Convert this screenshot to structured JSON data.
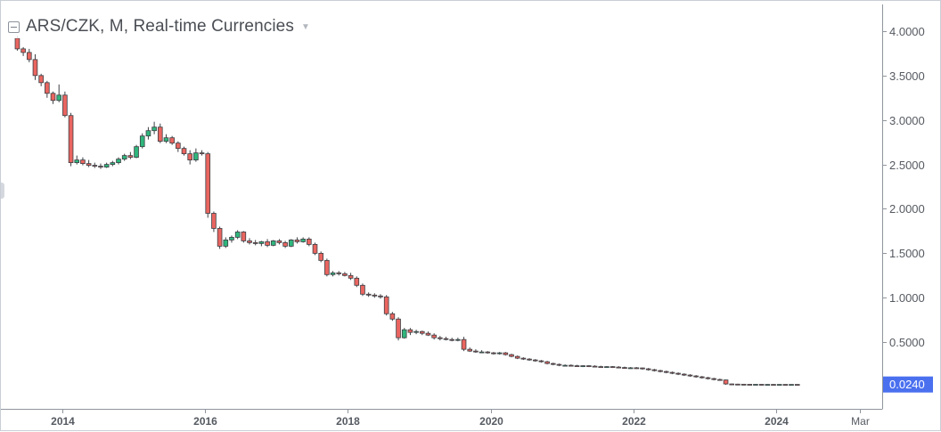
{
  "header": {
    "title": "ARS/CZK, M, Real-time Currencies",
    "icons": {
      "collapse": "collapse-box-icon",
      "dropdown": "chevron-down-icon"
    }
  },
  "colors": {
    "up": "#26a69a",
    "down": "#ef5350",
    "up_fill": "#2fb67c",
    "down_fill": "#ea6560",
    "wick": "#3c3f44",
    "axis_line": "#8f959c",
    "grid": "#e9ecef",
    "tick_text": "#555a61",
    "price_label_bg": "#4a70ef",
    "price_label_text": "#ffffff"
  },
  "chart_data": {
    "type": "candlestick",
    "title": "ARS/CZK, M, Real-time Currencies",
    "interval": "monthly",
    "y_axis_side": "right",
    "ylim": [
      -0.25,
      4.3
    ],
    "y_ticks": [
      "4.0000",
      "3.5000",
      "3.0000",
      "2.5000",
      "2.0000",
      "1.5000",
      "1.0000",
      "0.5000"
    ],
    "x_ticks": [
      {
        "label": "2014",
        "t": 2014.0
      },
      {
        "label": "2016",
        "t": 2016.0
      },
      {
        "label": "2018",
        "t": 2018.0
      },
      {
        "label": "2020",
        "t": 2020.0
      },
      {
        "label": "2022",
        "t": 2022.0
      },
      {
        "label": "2024",
        "t": 2024.0
      },
      {
        "label": "Mar",
        "t": 2025.17
      }
    ],
    "xlim": [
      2013.22,
      2025.48
    ],
    "first_month": "2013-05",
    "last_price_label": "0.0240",
    "last_price_value": 0.024,
    "grid": false,
    "ohlc": [
      [
        3.92,
        3.95,
        3.78,
        3.8
      ],
      [
        3.8,
        3.82,
        3.72,
        3.76
      ],
      [
        3.76,
        3.8,
        3.65,
        3.68
      ],
      [
        3.68,
        3.74,
        3.45,
        3.5
      ],
      [
        3.5,
        3.52,
        3.38,
        3.42
      ],
      [
        3.42,
        3.44,
        3.25,
        3.3
      ],
      [
        3.3,
        3.32,
        3.18,
        3.22
      ],
      [
        3.22,
        3.4,
        3.2,
        3.28
      ],
      [
        3.28,
        3.32,
        3.03,
        3.05
      ],
      [
        3.05,
        3.08,
        2.48,
        2.52
      ],
      [
        2.52,
        2.6,
        2.5,
        2.55
      ],
      [
        2.55,
        2.58,
        2.49,
        2.51
      ],
      [
        2.51,
        2.55,
        2.47,
        2.49
      ],
      [
        2.49,
        2.52,
        2.46,
        2.48
      ],
      [
        2.48,
        2.51,
        2.45,
        2.47
      ],
      [
        2.47,
        2.52,
        2.46,
        2.5
      ],
      [
        2.5,
        2.54,
        2.48,
        2.52
      ],
      [
        2.52,
        2.58,
        2.5,
        2.56
      ],
      [
        2.56,
        2.62,
        2.54,
        2.6
      ],
      [
        2.6,
        2.64,
        2.56,
        2.58
      ],
      [
        2.58,
        2.72,
        2.57,
        2.7
      ],
      [
        2.7,
        2.85,
        2.68,
        2.82
      ],
      [
        2.82,
        2.92,
        2.78,
        2.88
      ],
      [
        2.88,
        2.98,
        2.84,
        2.92
      ],
      [
        2.92,
        2.96,
        2.74,
        2.76
      ],
      [
        2.76,
        2.84,
        2.74,
        2.8
      ],
      [
        2.8,
        2.82,
        2.72,
        2.74
      ],
      [
        2.74,
        2.76,
        2.64,
        2.68
      ],
      [
        2.68,
        2.7,
        2.6,
        2.62
      ],
      [
        2.62,
        2.66,
        2.5,
        2.55
      ],
      [
        2.55,
        2.68,
        2.53,
        2.63
      ],
      [
        2.63,
        2.66,
        2.6,
        2.62
      ],
      [
        2.62,
        2.64,
        1.9,
        1.95
      ],
      [
        1.95,
        1.97,
        1.74,
        1.78
      ],
      [
        1.78,
        1.8,
        1.55,
        1.58
      ],
      [
        1.58,
        1.68,
        1.56,
        1.65
      ],
      [
        1.65,
        1.7,
        1.62,
        1.68
      ],
      [
        1.68,
        1.76,
        1.66,
        1.74
      ],
      [
        1.74,
        1.75,
        1.62,
        1.64
      ],
      [
        1.64,
        1.67,
        1.6,
        1.62
      ],
      [
        1.62,
        1.65,
        1.59,
        1.61
      ],
      [
        1.61,
        1.64,
        1.58,
        1.63
      ],
      [
        1.63,
        1.66,
        1.57,
        1.59
      ],
      [
        1.59,
        1.65,
        1.58,
        1.64
      ],
      [
        1.64,
        1.66,
        1.6,
        1.62
      ],
      [
        1.62,
        1.64,
        1.56,
        1.58
      ],
      [
        1.58,
        1.66,
        1.57,
        1.65
      ],
      [
        1.65,
        1.68,
        1.61,
        1.63
      ],
      [
        1.63,
        1.68,
        1.62,
        1.66
      ],
      [
        1.66,
        1.68,
        1.58,
        1.6
      ],
      [
        1.6,
        1.62,
        1.48,
        1.5
      ],
      [
        1.5,
        1.52,
        1.4,
        1.42
      ],
      [
        1.42,
        1.44,
        1.24,
        1.26
      ],
      [
        1.26,
        1.3,
        1.24,
        1.28
      ],
      [
        1.28,
        1.3,
        1.25,
        1.27
      ],
      [
        1.27,
        1.29,
        1.24,
        1.25
      ],
      [
        1.25,
        1.28,
        1.2,
        1.22
      ],
      [
        1.22,
        1.24,
        1.12,
        1.14
      ],
      [
        1.14,
        1.16,
        1.02,
        1.04
      ],
      [
        1.04,
        1.06,
        1.01,
        1.03
      ],
      [
        1.03,
        1.05,
        1.0,
        1.02
      ],
      [
        1.02,
        1.04,
        0.99,
        1.01
      ],
      [
        1.01,
        1.03,
        0.8,
        0.82
      ],
      [
        0.82,
        0.84,
        0.74,
        0.76
      ],
      [
        0.76,
        0.78,
        0.52,
        0.55
      ],
      [
        0.55,
        0.66,
        0.54,
        0.64
      ],
      [
        0.64,
        0.66,
        0.58,
        0.61
      ],
      [
        0.61,
        0.64,
        0.59,
        0.62
      ],
      [
        0.62,
        0.63,
        0.58,
        0.6
      ],
      [
        0.6,
        0.62,
        0.57,
        0.58
      ],
      [
        0.58,
        0.6,
        0.53,
        0.55
      ],
      [
        0.55,
        0.57,
        0.52,
        0.54
      ],
      [
        0.54,
        0.56,
        0.52,
        0.53
      ],
      [
        0.53,
        0.55,
        0.51,
        0.52
      ],
      [
        0.52,
        0.55,
        0.51,
        0.53
      ],
      [
        0.53,
        0.56,
        0.4,
        0.42
      ],
      [
        0.42,
        0.44,
        0.39,
        0.4
      ],
      [
        0.4,
        0.42,
        0.38,
        0.39
      ],
      [
        0.39,
        0.41,
        0.38,
        0.39
      ],
      [
        0.39,
        0.4,
        0.37,
        0.38
      ],
      [
        0.38,
        0.39,
        0.36,
        0.37
      ],
      [
        0.37,
        0.39,
        0.36,
        0.38
      ],
      [
        0.38,
        0.39,
        0.35,
        0.36
      ],
      [
        0.36,
        0.37,
        0.33,
        0.34
      ],
      [
        0.34,
        0.35,
        0.31,
        0.32
      ],
      [
        0.32,
        0.33,
        0.3,
        0.31
      ],
      [
        0.31,
        0.32,
        0.29,
        0.3
      ],
      [
        0.3,
        0.31,
        0.28,
        0.29
      ],
      [
        0.29,
        0.3,
        0.27,
        0.28
      ],
      [
        0.28,
        0.29,
        0.25,
        0.26
      ],
      [
        0.26,
        0.27,
        0.24,
        0.25
      ],
      [
        0.25,
        0.26,
        0.23,
        0.24
      ],
      [
        0.24,
        0.25,
        0.23,
        0.24
      ],
      [
        0.24,
        0.25,
        0.23,
        0.235
      ],
      [
        0.235,
        0.245,
        0.225,
        0.23
      ],
      [
        0.23,
        0.24,
        0.22,
        0.235
      ],
      [
        0.235,
        0.24,
        0.22,
        0.23
      ],
      [
        0.23,
        0.24,
        0.22,
        0.225
      ],
      [
        0.225,
        0.235,
        0.21,
        0.22
      ],
      [
        0.22,
        0.23,
        0.21,
        0.225
      ],
      [
        0.225,
        0.23,
        0.21,
        0.22
      ],
      [
        0.22,
        0.23,
        0.21,
        0.215
      ],
      [
        0.215,
        0.225,
        0.2,
        0.21
      ],
      [
        0.21,
        0.22,
        0.2,
        0.212
      ],
      [
        0.212,
        0.22,
        0.2,
        0.21
      ],
      [
        0.21,
        0.215,
        0.19,
        0.2
      ],
      [
        0.2,
        0.21,
        0.18,
        0.19
      ],
      [
        0.19,
        0.2,
        0.17,
        0.18
      ],
      [
        0.18,
        0.19,
        0.16,
        0.17
      ],
      [
        0.17,
        0.18,
        0.15,
        0.16
      ],
      [
        0.16,
        0.17,
        0.14,
        0.15
      ],
      [
        0.15,
        0.16,
        0.13,
        0.14
      ],
      [
        0.14,
        0.15,
        0.12,
        0.13
      ],
      [
        0.13,
        0.14,
        0.11,
        0.12
      ],
      [
        0.12,
        0.13,
        0.1,
        0.11
      ],
      [
        0.11,
        0.12,
        0.09,
        0.1
      ],
      [
        0.1,
        0.11,
        0.08,
        0.09
      ],
      [
        0.09,
        0.1,
        0.07,
        0.08
      ],
      [
        0.08,
        0.09,
        0.07,
        0.075
      ],
      [
        0.075,
        0.08,
        0.02,
        0.03
      ],
      [
        0.03,
        0.035,
        0.025,
        0.028
      ],
      [
        0.028,
        0.032,
        0.024,
        0.027
      ],
      [
        0.027,
        0.03,
        0.023,
        0.026
      ],
      [
        0.026,
        0.029,
        0.023,
        0.025
      ],
      [
        0.025,
        0.028,
        0.022,
        0.026
      ],
      [
        0.026,
        0.028,
        0.022,
        0.024
      ],
      [
        0.024,
        0.027,
        0.021,
        0.025
      ],
      [
        0.025,
        0.027,
        0.021,
        0.024
      ],
      [
        0.024,
        0.026,
        0.021,
        0.025
      ],
      [
        0.025,
        0.026,
        0.022,
        0.024
      ],
      [
        0.024,
        0.026,
        0.022,
        0.025
      ],
      [
        0.025,
        0.026,
        0.022,
        0.024
      ]
    ]
  }
}
